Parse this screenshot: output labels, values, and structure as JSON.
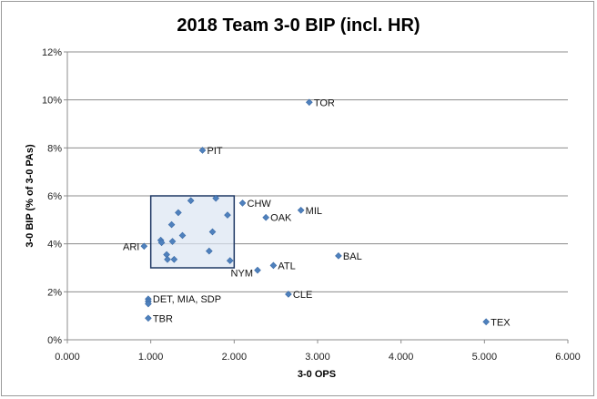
{
  "chart_data": {
    "type": "scatter",
    "title": "2018 Team 3-0 BIP (incl. HR)",
    "xlabel": "3-0 OPS",
    "ylabel": "3-0 BIP (% of 3-0 PAs)",
    "xlim": [
      0,
      6
    ],
    "ylim": [
      0,
      0.12
    ],
    "x_ticks": [
      "0.000",
      "1.000",
      "2.000",
      "3.000",
      "4.000",
      "5.000",
      "6.000"
    ],
    "y_ticks": [
      "0%",
      "2%",
      "4%",
      "6%",
      "8%",
      "10%",
      "12%"
    ],
    "grid": "horizontal",
    "marker_color": "#4f81bd",
    "highlight_box": {
      "x": [
        1.0,
        2.0
      ],
      "y": [
        0.03,
        0.06
      ],
      "fill": "#dce6f2",
      "stroke": "#1f3864"
    },
    "points": [
      {
        "x": 2.9,
        "y": 0.099,
        "label": "TOR"
      },
      {
        "x": 1.62,
        "y": 0.079,
        "label": "PIT"
      },
      {
        "x": 2.1,
        "y": 0.057,
        "label": "CHW"
      },
      {
        "x": 2.8,
        "y": 0.054,
        "label": "MIL"
      },
      {
        "x": 2.38,
        "y": 0.051,
        "label": "OAK"
      },
      {
        "x": 0.92,
        "y": 0.039,
        "label": "ARI"
      },
      {
        "x": 3.25,
        "y": 0.035,
        "label": "BAL"
      },
      {
        "x": 2.47,
        "y": 0.031,
        "label": "ATL"
      },
      {
        "x": 2.28,
        "y": 0.029,
        "label": "NYM"
      },
      {
        "x": 2.65,
        "y": 0.019,
        "label": "CLE"
      },
      {
        "x": 0.97,
        "y": 0.017,
        "label": "DET,  MIA, SDP"
      },
      {
        "x": 0.97,
        "y": 0.016,
        "label": ""
      },
      {
        "x": 0.97,
        "y": 0.015,
        "label": ""
      },
      {
        "x": 0.97,
        "y": 0.009,
        "label": "TBR"
      },
      {
        "x": 5.02,
        "y": 0.0075,
        "label": "TEX"
      },
      {
        "x": 1.48,
        "y": 0.058,
        "label": ""
      },
      {
        "x": 1.78,
        "y": 0.059,
        "label": ""
      },
      {
        "x": 1.33,
        "y": 0.053,
        "label": ""
      },
      {
        "x": 1.92,
        "y": 0.052,
        "label": ""
      },
      {
        "x": 1.25,
        "y": 0.048,
        "label": ""
      },
      {
        "x": 1.74,
        "y": 0.045,
        "label": ""
      },
      {
        "x": 1.38,
        "y": 0.0435,
        "label": ""
      },
      {
        "x": 1.12,
        "y": 0.0415,
        "label": ""
      },
      {
        "x": 1.13,
        "y": 0.0405,
        "label": ""
      },
      {
        "x": 1.26,
        "y": 0.041,
        "label": ""
      },
      {
        "x": 1.7,
        "y": 0.037,
        "label": ""
      },
      {
        "x": 1.19,
        "y": 0.0355,
        "label": ""
      },
      {
        "x": 1.2,
        "y": 0.0335,
        "label": ""
      },
      {
        "x": 1.28,
        "y": 0.0335,
        "label": ""
      },
      {
        "x": 1.95,
        "y": 0.033,
        "label": ""
      }
    ]
  }
}
